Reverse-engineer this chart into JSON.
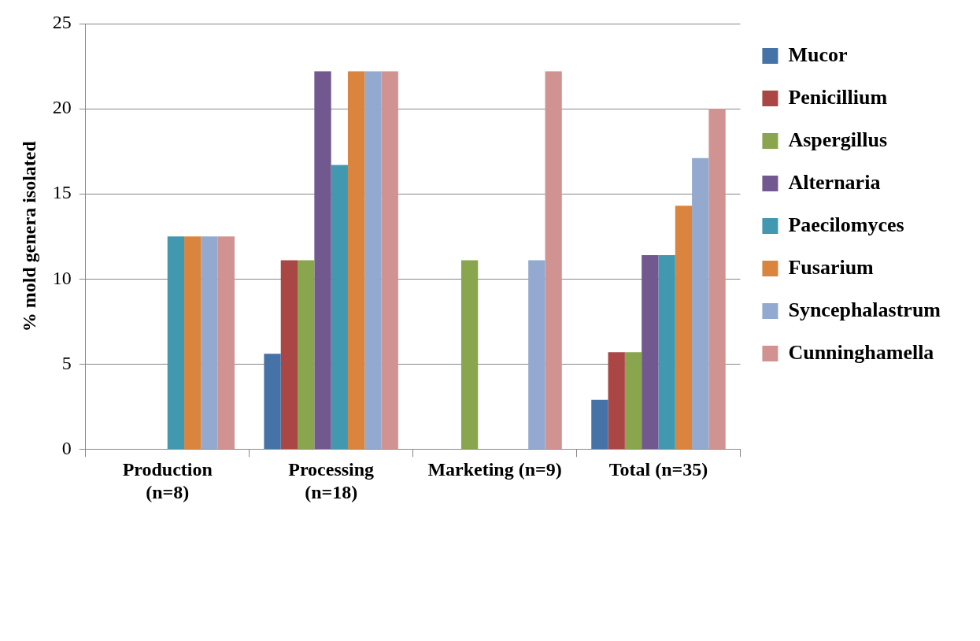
{
  "chart_data": {
    "type": "bar",
    "ylabel": "% mold genera isolated",
    "categories": [
      "Production (n=8)",
      "Processing (n=18)",
      "Marketing (n=9)",
      "Total (n=35)"
    ],
    "series": [
      {
        "name": "Mucor",
        "color": "#4572a7",
        "values": [
          0,
          5.6,
          0,
          2.9
        ]
      },
      {
        "name": "Penicillium",
        "color": "#aa4643",
        "values": [
          0,
          11.1,
          0,
          5.7
        ]
      },
      {
        "name": "Aspergillus",
        "color": "#89a54e",
        "values": [
          0,
          11.1,
          11.1,
          5.7
        ]
      },
      {
        "name": "Alternaria",
        "color": "#71588f",
        "values": [
          0,
          22.2,
          0,
          11.4
        ]
      },
      {
        "name": "Paecilomyces",
        "color": "#4198af",
        "values": [
          12.5,
          16.7,
          0,
          11.4
        ]
      },
      {
        "name": "Fusarium",
        "color": "#db843d",
        "values": [
          12.5,
          22.2,
          0,
          14.3
        ]
      },
      {
        "name": "Syncephalastrum",
        "color": "#93a9cf",
        "values": [
          12.5,
          22.2,
          11.1,
          17.1
        ]
      },
      {
        "name": "Cunninghamella",
        "color": "#d19392",
        "values": [
          12.5,
          22.2,
          22.2,
          20.0
        ]
      }
    ],
    "ylim": [
      0,
      25
    ],
    "yticks": [
      0,
      5,
      10,
      15,
      20,
      25
    ],
    "grid": "y",
    "legend": "right"
  }
}
